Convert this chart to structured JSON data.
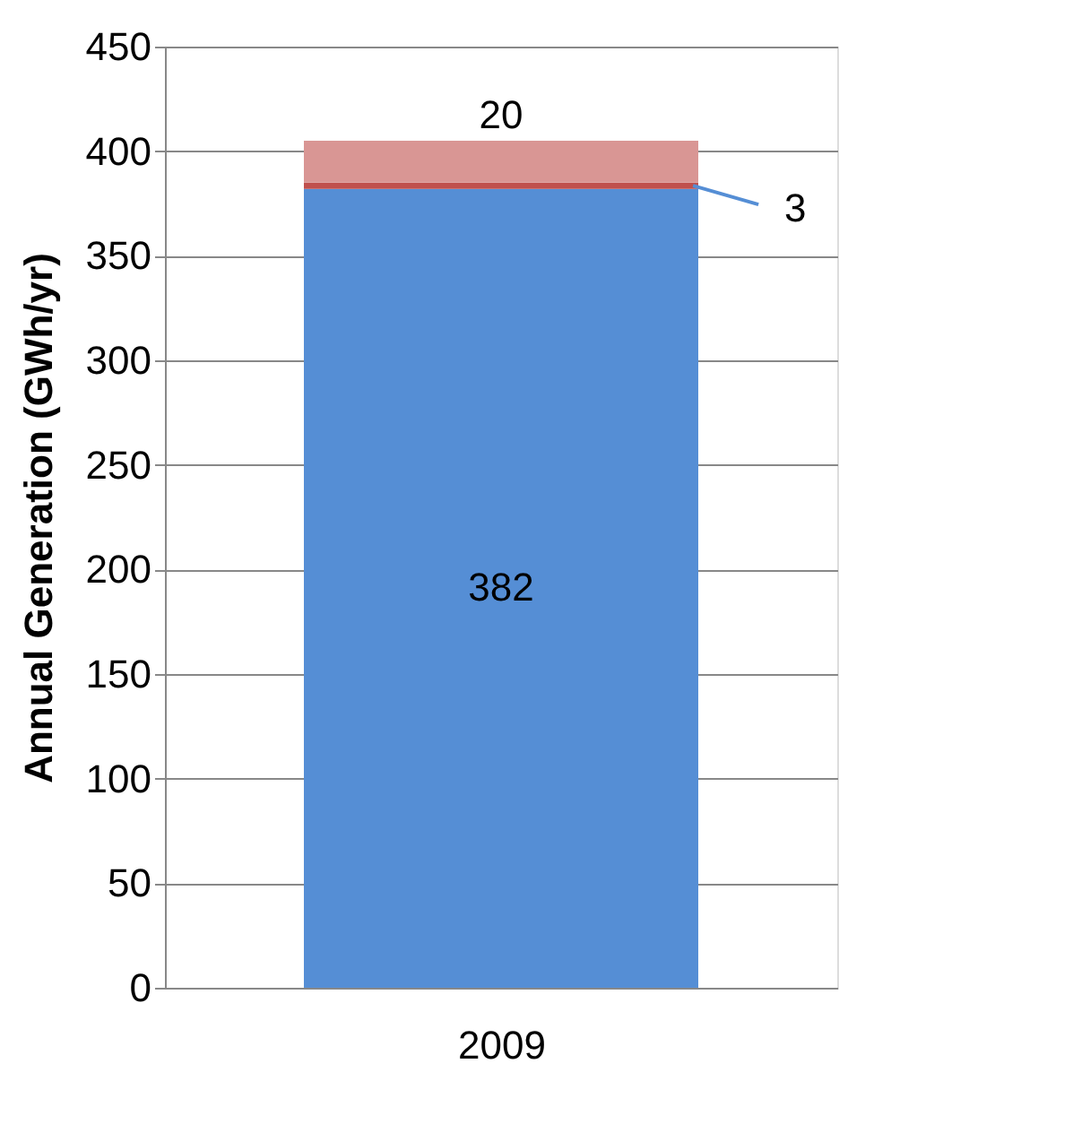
{
  "chart_data": {
    "type": "bar",
    "stacked": true,
    "ylabel": "Annual Generation (GWh/yr)",
    "categories": [
      "2009"
    ],
    "series": [
      {
        "color": "#558ed5",
        "values": [
          382
        ]
      },
      {
        "color": "#c0504d",
        "values": [
          3
        ]
      },
      {
        "color": "#d99694",
        "values": [
          20
        ]
      }
    ],
    "ylim": [
      0,
      450
    ],
    "yticks": [
      0,
      50,
      100,
      150,
      200,
      250,
      300,
      350,
      400,
      450
    ],
    "grid": "y",
    "data_labels": true
  }
}
